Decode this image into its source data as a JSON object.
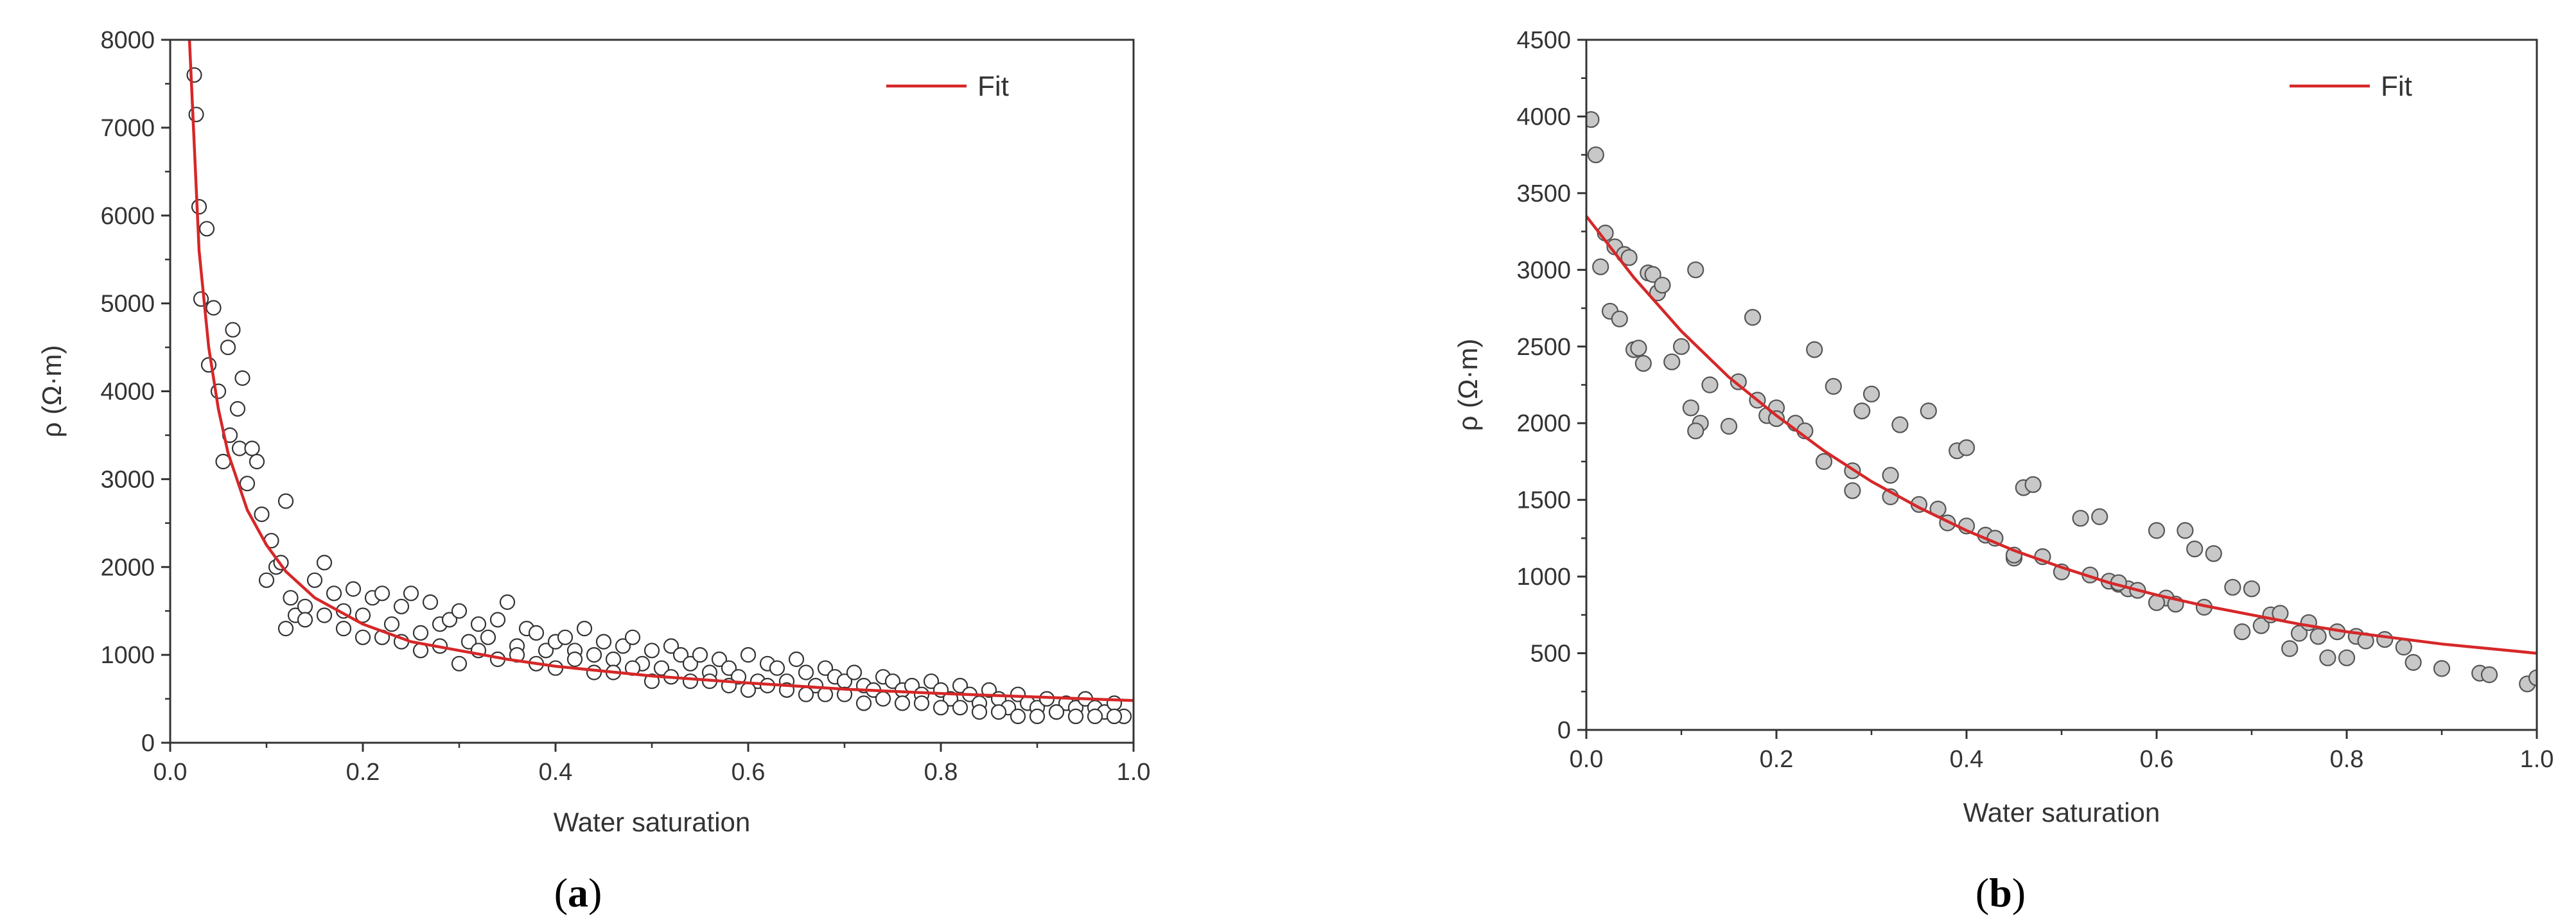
{
  "chart_data": [
    {
      "type": "scatter",
      "panel": "a",
      "xlabel": "Water saturation",
      "ylabel": "ρ (Ω·m)",
      "xlim": [
        0,
        1.0
      ],
      "ylim": [
        0,
        8000
      ],
      "x_ticks": [
        "0.0",
        "0.2",
        "0.4",
        "0.6",
        "0.8",
        "1.0"
      ],
      "y_ticks": [
        "0",
        "1000",
        "2000",
        "3000",
        "4000",
        "5000",
        "6000",
        "7000",
        "8000"
      ],
      "legend": {
        "label": "Fit",
        "position": "top-right"
      },
      "fit_color": "#d62728",
      "marker_fill": "#ffffff",
      "marker_stroke": "#333333",
      "fit_curve": {
        "x": [
          0.02,
          0.03,
          0.04,
          0.05,
          0.06,
          0.08,
          0.1,
          0.12,
          0.15,
          0.2,
          0.25,
          0.3,
          0.35,
          0.4,
          0.5,
          0.6,
          0.7,
          0.8,
          0.9,
          1.0
        ],
        "y": [
          8000,
          5600,
          4500,
          3800,
          3300,
          2650,
          2250,
          1950,
          1650,
          1350,
          1150,
          1050,
          950,
          870,
          760,
          680,
          610,
          560,
          520,
          480
        ]
      },
      "points": {
        "x": [
          0.025,
          0.027,
          0.03,
          0.032,
          0.038,
          0.04,
          0.045,
          0.05,
          0.055,
          0.06,
          0.062,
          0.065,
          0.07,
          0.072,
          0.075,
          0.08,
          0.085,
          0.09,
          0.095,
          0.1,
          0.105,
          0.11,
          0.115,
          0.12,
          0.125,
          0.13,
          0.14,
          0.15,
          0.16,
          0.17,
          0.18,
          0.19,
          0.2,
          0.21,
          0.22,
          0.23,
          0.24,
          0.25,
          0.26,
          0.27,
          0.28,
          0.29,
          0.3,
          0.31,
          0.32,
          0.33,
          0.34,
          0.35,
          0.36,
          0.37,
          0.38,
          0.39,
          0.4,
          0.41,
          0.42,
          0.43,
          0.44,
          0.45,
          0.46,
          0.47,
          0.48,
          0.49,
          0.5,
          0.51,
          0.52,
          0.53,
          0.54,
          0.55,
          0.56,
          0.57,
          0.58,
          0.59,
          0.6,
          0.61,
          0.62,
          0.63,
          0.64,
          0.65,
          0.66,
          0.67,
          0.68,
          0.69,
          0.7,
          0.71,
          0.72,
          0.73,
          0.74,
          0.75,
          0.76,
          0.77,
          0.78,
          0.79,
          0.8,
          0.81,
          0.82,
          0.83,
          0.84,
          0.85,
          0.86,
          0.87,
          0.88,
          0.89,
          0.9,
          0.91,
          0.92,
          0.93,
          0.94,
          0.95,
          0.96,
          0.97,
          0.98,
          0.99,
          0.12,
          0.14,
          0.16,
          0.18,
          0.2,
          0.22,
          0.24,
          0.26,
          0.28,
          0.3,
          0.32,
          0.34,
          0.36,
          0.38,
          0.4,
          0.42,
          0.44,
          0.46,
          0.48,
          0.5,
          0.52,
          0.54,
          0.56,
          0.58,
          0.6,
          0.62,
          0.64,
          0.66,
          0.68,
          0.7,
          0.72,
          0.74,
          0.76,
          0.78,
          0.8,
          0.82,
          0.84,
          0.86,
          0.88,
          0.9,
          0.92,
          0.94,
          0.96,
          0.98
        ],
        "y": [
          7600,
          7150,
          6100,
          5050,
          5850,
          4300,
          4950,
          4000,
          3200,
          4500,
          3500,
          4700,
          3800,
          3350,
          4150,
          2950,
          3350,
          3200,
          2600,
          1850,
          2300,
          2000,
          2050,
          2750,
          1650,
          1450,
          1550,
          1850,
          2050,
          1700,
          1500,
          1750,
          1450,
          1650,
          1700,
          1350,
          1550,
          1700,
          1250,
          1600,
          1350,
          1400,
          1500,
          1150,
          1350,
          1200,
          1400,
          1600,
          1100,
          1300,
          1250,
          1050,
          1150,
          1200,
          1050,
          1300,
          1000,
          1150,
          950,
          1100,
          1200,
          900,
          1050,
          850,
          1100,
          1000,
          900,
          1000,
          800,
          950,
          850,
          750,
          1000,
          700,
          900,
          850,
          700,
          950,
          800,
          650,
          850,
          750,
          700,
          800,
          650,
          600,
          750,
          700,
          600,
          650,
          550,
          700,
          600,
          500,
          650,
          550,
          450,
          600,
          500,
          400,
          550,
          450,
          400,
          500,
          350,
          450,
          400,
          500,
          400,
          350,
          450,
          300,
          1300,
          1400,
          1450,
          1300,
          1200,
          1200,
          1150,
          1050,
          1100,
          900,
          1050,
          950,
          1000,
          900,
          850,
          950,
          800,
          800,
          850,
          700,
          750,
          700,
          700,
          650,
          600,
          650,
          600,
          550,
          550,
          550,
          450,
          500,
          450,
          450,
          400,
          400,
          350,
          350,
          300,
          300,
          350,
          300,
          300,
          300
        ]
      }
    },
    {
      "type": "scatter",
      "panel": "b",
      "xlabel": "Water saturation",
      "ylabel": "ρ (Ω·m)",
      "xlim": [
        0,
        1.0
      ],
      "ylim": [
        0,
        4500
      ],
      "x_ticks": [
        "0.0",
        "0.2",
        "0.4",
        "0.6",
        "0.8",
        "1.0"
      ],
      "y_ticks": [
        "0",
        "500",
        "1000",
        "1500",
        "2000",
        "2500",
        "3000",
        "3500",
        "4000",
        "4500"
      ],
      "legend": {
        "label": "Fit",
        "position": "top-right"
      },
      "fit_color": "#d62728",
      "marker_fill": "#c8c8c8",
      "marker_stroke": "#555555",
      "fit_curve": {
        "x": [
          0.0,
          0.05,
          0.1,
          0.15,
          0.2,
          0.25,
          0.3,
          0.35,
          0.4,
          0.45,
          0.5,
          0.55,
          0.6,
          0.65,
          0.7,
          0.75,
          0.8,
          0.85,
          0.9,
          0.95,
          1.0
        ],
        "y": [
          3350,
          2950,
          2600,
          2300,
          2050,
          1820,
          1620,
          1450,
          1300,
          1170,
          1060,
          960,
          880,
          810,
          750,
          690,
          640,
          600,
          560,
          530,
          500
        ]
      },
      "points": {
        "x": [
          0.005,
          0.01,
          0.015,
          0.02,
          0.025,
          0.03,
          0.035,
          0.04,
          0.045,
          0.05,
          0.055,
          0.06,
          0.065,
          0.07,
          0.075,
          0.08,
          0.09,
          0.1,
          0.11,
          0.115,
          0.12,
          0.13,
          0.15,
          0.16,
          0.175,
          0.18,
          0.19,
          0.2,
          0.22,
          0.23,
          0.24,
          0.25,
          0.26,
          0.28,
          0.29,
          0.3,
          0.32,
          0.33,
          0.35,
          0.36,
          0.37,
          0.38,
          0.39,
          0.4,
          0.42,
          0.43,
          0.45,
          0.46,
          0.47,
          0.48,
          0.5,
          0.52,
          0.53,
          0.54,
          0.55,
          0.56,
          0.57,
          0.58,
          0.6,
          0.61,
          0.62,
          0.63,
          0.64,
          0.65,
          0.66,
          0.68,
          0.69,
          0.7,
          0.71,
          0.72,
          0.73,
          0.74,
          0.75,
          0.76,
          0.77,
          0.78,
          0.79,
          0.8,
          0.81,
          0.82,
          0.84,
          0.86,
          0.87,
          0.9,
          0.94,
          0.95,
          0.99,
          1.0,
          0.115,
          0.2,
          0.28,
          0.32,
          0.4,
          0.45,
          0.56,
          0.6
        ],
        "y": [
          3980,
          3750,
          3020,
          3240,
          2730,
          3150,
          2680,
          3100,
          3080,
          2480,
          2490,
          2390,
          2980,
          2970,
          2850,
          2900,
          2400,
          2500,
          2100,
          3000,
          2000,
          2250,
          1980,
          2270,
          2690,
          2150,
          2050,
          2100,
          2000,
          1950,
          2480,
          1750,
          2240,
          1560,
          2080,
          2190,
          1520,
          1990,
          1470,
          2080,
          1440,
          1350,
          1820,
          1840,
          1270,
          1250,
          1120,
          1580,
          1600,
          1130,
          1030,
          1380,
          1010,
          1390,
          970,
          950,
          920,
          910,
          1300,
          860,
          820,
          1300,
          1180,
          800,
          1150,
          930,
          640,
          920,
          680,
          750,
          760,
          530,
          630,
          700,
          610,
          470,
          640,
          470,
          610,
          580,
          590,
          540,
          440,
          400,
          370,
          360,
          300,
          340,
          1950,
          2030,
          1690,
          1660,
          1330,
          1140,
          960,
          830
        ]
      }
    }
  ],
  "labels": {
    "a": "a",
    "b": "b"
  }
}
